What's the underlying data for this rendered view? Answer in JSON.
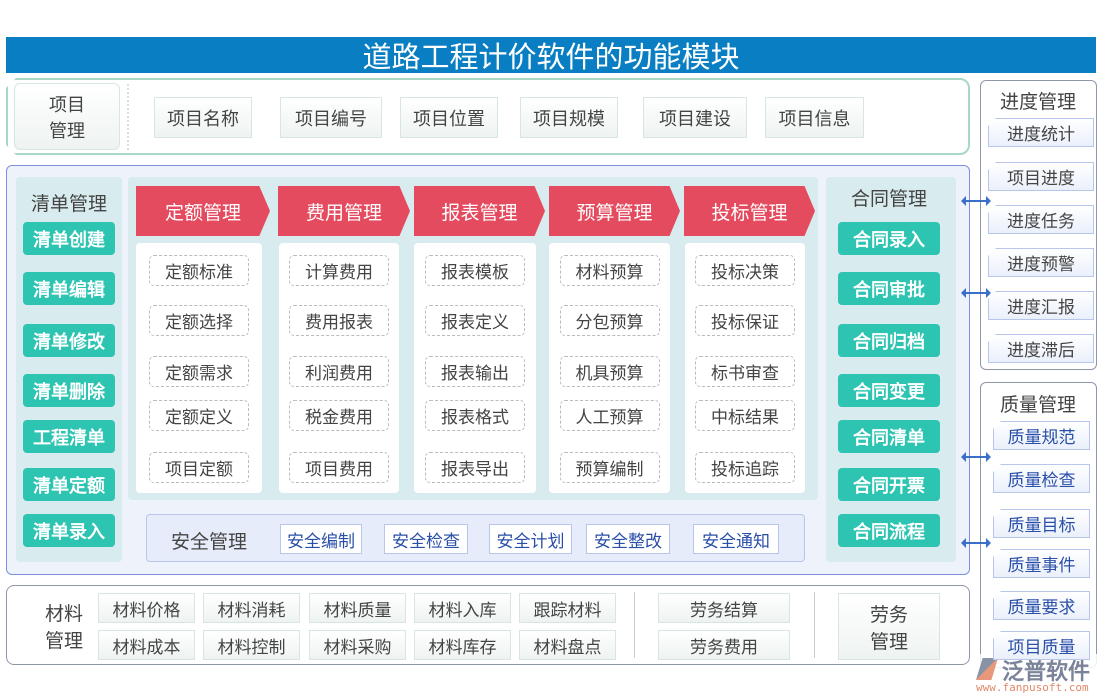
{
  "title": "道路工程计价软件的功能模块",
  "project": {
    "label": "项目\n管理",
    "items": [
      "项目名称",
      "项目编号",
      "项目位置",
      "项目规模",
      "项目建设",
      "项目信息"
    ]
  },
  "list_mgmt": {
    "label": "清单管理",
    "items": [
      "清单创建",
      "清单编辑",
      "清单修改",
      "清单删除",
      "工程清单",
      "清单定额",
      "清单录入"
    ]
  },
  "modules": [
    {
      "label": "定额管理",
      "items": [
        "定额标准",
        "定额选择",
        "定额需求",
        "定额定义",
        "项目定额"
      ]
    },
    {
      "label": "费用管理",
      "items": [
        "计算费用",
        "费用报表",
        "利润费用",
        "税金费用",
        "项目费用"
      ]
    },
    {
      "label": "报表管理",
      "items": [
        "报表模板",
        "报表定义",
        "报表输出",
        "报表格式",
        "报表导出"
      ]
    },
    {
      "label": "预算管理",
      "items": [
        "材料预算",
        "分包预算",
        "机具预算",
        "人工预算",
        "预算编制"
      ]
    },
    {
      "label": "投标管理",
      "items": [
        "投标决策",
        "投标保证",
        "标书审查",
        "中标结果",
        "投标追踪"
      ]
    }
  ],
  "safety": {
    "label": "安全管理",
    "items": [
      "安全编制",
      "安全检查",
      "安全计划",
      "安全整改",
      "安全通知"
    ]
  },
  "contract": {
    "label": "合同管理",
    "items": [
      "合同录入",
      "合同审批",
      "合同归档",
      "合同变更",
      "合同清单",
      "合同开票",
      "合同流程"
    ]
  },
  "material": {
    "label": "材料\n管理",
    "items": [
      "材料价格",
      "材料消耗",
      "材料质量",
      "材料入库",
      "跟踪材料",
      "材料成本",
      "材料控制",
      "材料采购",
      "材料库存",
      "材料盘点"
    ]
  },
  "labor": {
    "label": "劳务\n管理",
    "items": [
      "劳务结算",
      "劳务费用"
    ]
  },
  "progress": {
    "label": "进度管理",
    "items": [
      "进度统计",
      "项目进度",
      "进度任务",
      "进度预警",
      "进度汇报",
      "进度滞后"
    ]
  },
  "quality": {
    "label": "质量管理",
    "items": [
      "质量规范",
      "质量检查",
      "质量目标",
      "质量事件",
      "质量要求",
      "项目质量"
    ]
  },
  "logo": {
    "name": "泛普软件",
    "url": "www.fanpusoft.com"
  },
  "colors": {
    "title": "#0a7ec2",
    "module_header": "#e54b5f",
    "teal_button": "#2dc4b2",
    "panel": "#d8ebee"
  }
}
